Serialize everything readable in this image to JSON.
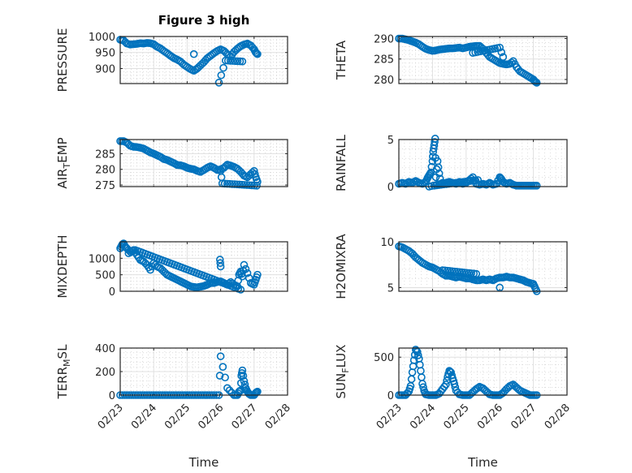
{
  "chart_data": {
    "type": "scatter",
    "figure_title": "Figure 3 high",
    "marker": "circle-open",
    "marker_color": "#0072BD",
    "grid": true,
    "minor_grid": true,
    "x_tick_labels": [
      "02/23",
      "02/24",
      "02/25",
      "02/26",
      "02/27",
      "02/28"
    ],
    "x_range_days": [
      0,
      5
    ],
    "xlabel": "Time",
    "subplots": [
      {
        "id": "pressure",
        "ylabel_main": "PRESSURE",
        "ylabel_sub": "",
        "ylabel_rest": "",
        "ylim": [
          853,
          1000
        ],
        "yticks": [
          900,
          950,
          1000
        ],
        "title": "Figure 3 high",
        "show_xtick_labels": false,
        "x": [
          0.0,
          0.1,
          0.2,
          0.3,
          0.4,
          0.5,
          0.6,
          0.7,
          0.8,
          0.9,
          1.0,
          1.1,
          1.2,
          1.3,
          1.4,
          1.5,
          1.6,
          1.7,
          1.8,
          1.9,
          2.0,
          2.1,
          2.2,
          2.3,
          2.4,
          2.5,
          2.6,
          2.7,
          2.8,
          2.9,
          3.0,
          3.1,
          3.2,
          3.3,
          3.4,
          3.5,
          3.6,
          3.7,
          3.8,
          3.9,
          4.0,
          4.05,
          4.1,
          2.95,
          3.15,
          3.65,
          2.2
        ],
        "y": [
          990,
          988,
          978,
          975,
          976,
          977,
          979,
          978,
          980,
          979,
          976,
          968,
          963,
          955,
          948,
          940,
          933,
          928,
          922,
          912,
          905,
          898,
          893,
          900,
          910,
          920,
          932,
          940,
          948,
          955,
          960,
          955,
          945,
          938,
          952,
          962,
          970,
          975,
          978,
          972,
          960,
          950,
          945,
          856,
          925,
          922,
          945
        ]
      },
      {
        "id": "theta",
        "ylabel_main": "THETA",
        "ylabel_sub": "",
        "ylabel_rest": "",
        "ylim": [
          279,
          290.5
        ],
        "yticks": [
          280,
          285,
          290
        ],
        "show_xtick_labels": false,
        "x": [
          0.0,
          0.1,
          0.2,
          0.3,
          0.4,
          0.5,
          0.6,
          0.7,
          0.8,
          0.9,
          1.0,
          1.1,
          1.2,
          1.3,
          1.4,
          1.5,
          1.6,
          1.7,
          1.8,
          1.9,
          2.0,
          2.1,
          2.2,
          2.3,
          2.4,
          2.5,
          2.6,
          2.7,
          2.8,
          2.9,
          3.0,
          3.1,
          3.2,
          3.3,
          3.4,
          3.5,
          3.6,
          3.7,
          3.8,
          3.9,
          4.0,
          4.05,
          4.1,
          2.2,
          3.0,
          3.1
        ],
        "y": [
          290,
          290,
          289.8,
          289.6,
          289.3,
          289,
          288.6,
          288,
          287.5,
          287.2,
          287,
          287.1,
          287.3,
          287.4,
          287.5,
          287.6,
          287.6,
          287.7,
          287.8,
          287.6,
          287.8,
          288,
          288.1,
          288.2,
          288.2,
          287.5,
          286.5,
          285.5,
          285,
          284.5,
          284,
          283.8,
          283.7,
          283.8,
          284.5,
          283,
          282,
          281.5,
          281,
          280.5,
          280,
          279.5,
          279.2,
          286.5,
          287.8,
          285.5
        ]
      },
      {
        "id": "air_temp",
        "ylabel_main": "AIR",
        "ylabel_sub": "T",
        "ylabel_rest": "EMP",
        "ylim": [
          274.5,
          289.5
        ],
        "yticks": [
          275,
          280,
          285
        ],
        "show_xtick_labels": false,
        "x": [
          0.0,
          0.1,
          0.2,
          0.3,
          0.4,
          0.5,
          0.6,
          0.7,
          0.8,
          0.9,
          1.0,
          1.1,
          1.2,
          1.3,
          1.4,
          1.5,
          1.6,
          1.7,
          1.8,
          1.9,
          2.0,
          2.1,
          2.2,
          2.3,
          2.4,
          2.5,
          2.6,
          2.7,
          2.8,
          2.9,
          3.0,
          3.1,
          3.2,
          3.3,
          3.4,
          3.5,
          3.6,
          3.7,
          3.8,
          3.9,
          4.0,
          4.05,
          4.1,
          3.0,
          3.05,
          4.08
        ],
        "y": [
          289,
          289,
          288.5,
          287.5,
          287.2,
          287.1,
          286.9,
          286.6,
          286,
          285.4,
          285,
          284.5,
          284,
          283.3,
          283,
          282.5,
          282,
          281.4,
          281.3,
          281,
          280.5,
          280.2,
          280,
          279.5,
          279.2,
          279.8,
          280.5,
          281,
          280.5,
          279.8,
          280,
          280.5,
          281.5,
          281.2,
          280.8,
          280.2,
          279.2,
          278,
          277.5,
          278.5,
          279.5,
          277.5,
          276,
          279.5,
          275.5,
          274.8
        ]
      },
      {
        "id": "rainfall",
        "ylabel_main": "RAINFALL",
        "ylabel_sub": "",
        "ylabel_rest": "",
        "ylim": [
          0,
          5
        ],
        "yticks": [
          0,
          5
        ],
        "show_xtick_labels": false,
        "x": [
          0.0,
          0.1,
          0.2,
          0.3,
          0.4,
          0.5,
          0.6,
          0.7,
          0.8,
          0.85,
          0.9,
          0.95,
          1.0,
          1.02,
          1.05,
          1.08,
          1.1,
          1.15,
          1.2,
          1.25,
          1.3,
          1.4,
          1.5,
          1.6,
          1.7,
          1.8,
          1.9,
          2.0,
          2.1,
          2.2,
          2.3,
          2.4,
          2.5,
          2.6,
          2.7,
          2.8,
          2.9,
          3.0,
          3.05,
          3.1,
          3.2,
          3.3,
          3.4,
          3.5,
          3.6,
          3.7,
          3.8,
          3.9,
          4.0,
          4.1,
          0.9,
          1.5,
          1.05,
          2.35
        ],
        "y": [
          0.3,
          0.4,
          0.3,
          0.5,
          0.4,
          0.6,
          0.4,
          0.3,
          0.5,
          0.9,
          1.2,
          1.5,
          2.7,
          3.7,
          4.4,
          5.1,
          1.0,
          2.7,
          1.4,
          0.3,
          0.4,
          0.3,
          0.5,
          0.4,
          0.3,
          0.5,
          0.3,
          0.4,
          0.7,
          1.0,
          0.3,
          0.2,
          0.3,
          0.2,
          0.4,
          0.2,
          0.3,
          1.0,
          0.8,
          0.5,
          0.3,
          0.4,
          0.2,
          0.1,
          0.1,
          0.1,
          0.1,
          0.1,
          0.1,
          0.1,
          0.0,
          0.5,
          0.1,
          0.7
        ]
      },
      {
        "id": "mixdepth",
        "ylabel_main": "MIXDEPTH",
        "ylabel_sub": "",
        "ylabel_rest": "",
        "ylim": [
          0,
          1500
        ],
        "yticks": [
          0,
          500,
          1000
        ],
        "show_xtick_labels": false,
        "x": [
          0.0,
          0.05,
          0.1,
          0.15,
          0.2,
          0.3,
          0.4,
          0.5,
          0.6,
          0.7,
          0.8,
          0.9,
          1.0,
          1.1,
          1.2,
          1.3,
          1.4,
          1.5,
          1.6,
          1.7,
          1.8,
          1.9,
          2.0,
          2.1,
          2.2,
          2.3,
          2.4,
          2.5,
          2.6,
          2.7,
          2.8,
          2.9,
          3.0,
          3.1,
          3.2,
          3.3,
          3.4,
          3.5,
          3.55,
          3.6,
          3.65,
          3.7,
          3.8,
          3.9,
          4.0,
          4.05,
          4.1,
          2.98,
          3.0,
          0.25,
          0.45,
          3.6
        ],
        "y": [
          1300,
          1400,
          1450,
          1350,
          1300,
          1200,
          1250,
          1100,
          950,
          900,
          800,
          650,
          850,
          750,
          700,
          600,
          500,
          450,
          400,
          350,
          300,
          250,
          200,
          150,
          130,
          120,
          140,
          160,
          200,
          250,
          250,
          280,
          300,
          250,
          200,
          280,
          200,
          150,
          500,
          600,
          450,
          800,
          550,
          250,
          200,
          350,
          500,
          960,
          750,
          1150,
          1250,
          50
        ]
      },
      {
        "id": "h2omixra",
        "ylabel_main": "H2OMIXRA",
        "ylabel_sub": "",
        "ylabel_rest": "",
        "ylim": [
          4.6,
          10
        ],
        "yticks": [
          5,
          10
        ],
        "show_xtick_labels": false,
        "x": [
          0.0,
          0.1,
          0.2,
          0.3,
          0.4,
          0.5,
          0.6,
          0.7,
          0.8,
          0.9,
          1.0,
          1.1,
          1.2,
          1.3,
          1.4,
          1.5,
          1.6,
          1.7,
          1.8,
          1.9,
          2.0,
          2.1,
          2.2,
          2.3,
          2.4,
          2.5,
          2.6,
          2.7,
          2.8,
          2.9,
          3.0,
          3.1,
          3.2,
          3.3,
          3.4,
          3.5,
          3.6,
          3.7,
          3.8,
          3.9,
          4.0,
          4.05,
          4.1,
          3.0,
          1.3,
          2.3
        ],
        "y": [
          9.5,
          9.4,
          9.2,
          9.0,
          8.7,
          8.3,
          8.0,
          7.7,
          7.5,
          7.3,
          7.2,
          7.0,
          6.8,
          6.5,
          6.3,
          6.3,
          6.2,
          6.1,
          6.2,
          6.1,
          6.0,
          6.0,
          5.9,
          5.8,
          5.8,
          5.9,
          5.8,
          5.9,
          5.8,
          6.0,
          6.1,
          6.1,
          6.2,
          6.1,
          6.1,
          6.0,
          5.9,
          5.8,
          5.6,
          5.5,
          5.4,
          5.0,
          4.6,
          5.0,
          6.9,
          6.5
        ]
      },
      {
        "id": "terr_msl",
        "ylabel_main": "TERR",
        "ylabel_sub": "M",
        "ylabel_rest": "SL",
        "ylim": [
          0,
          400
        ],
        "yticks": [
          0,
          200,
          400
        ],
        "show_xtick_labels": true,
        "x": [
          0.0,
          0.2,
          0.4,
          0.6,
          0.8,
          1.0,
          1.2,
          1.4,
          1.6,
          1.8,
          2.0,
          2.2,
          2.4,
          2.6,
          2.8,
          2.95,
          3.0,
          3.2,
          3.4,
          3.5,
          3.55,
          3.6,
          3.62,
          3.65,
          3.7,
          3.75,
          3.8,
          3.85,
          3.9,
          4.0,
          4.05,
          4.1
        ],
        "y": [
          0,
          0,
          0,
          0,
          0,
          0,
          0,
          0,
          0,
          0,
          0,
          0,
          0,
          0,
          0,
          0,
          330,
          60,
          0,
          0,
          30,
          40,
          165,
          210,
          120,
          60,
          30,
          10,
          0,
          0,
          20,
          30
        ]
      },
      {
        "id": "sun_flux",
        "ylabel_main": "SUN",
        "ylabel_sub": "F",
        "ylabel_rest": "LUX",
        "ylim": [
          0,
          620
        ],
        "yticks": [
          0,
          500
        ],
        "show_xtick_labels": true,
        "x": [
          0.0,
          0.1,
          0.2,
          0.3,
          0.35,
          0.4,
          0.45,
          0.5,
          0.55,
          0.6,
          0.65,
          0.7,
          0.75,
          0.8,
          0.9,
          1.0,
          1.1,
          1.2,
          1.3,
          1.4,
          1.45,
          1.5,
          1.55,
          1.6,
          1.65,
          1.7,
          1.8,
          1.9,
          2.0,
          2.1,
          2.2,
          2.3,
          2.4,
          2.5,
          2.6,
          2.7,
          2.8,
          2.9,
          3.0,
          3.1,
          3.2,
          3.3,
          3.4,
          3.5,
          3.6,
          3.7,
          3.8,
          3.9,
          4.0,
          4.1
        ],
        "y": [
          0,
          0,
          0,
          50,
          120,
          300,
          460,
          600,
          570,
          480,
          320,
          150,
          60,
          10,
          0,
          0,
          0,
          20,
          80,
          140,
          240,
          320,
          300,
          220,
          150,
          60,
          10,
          0,
          0,
          0,
          40,
          80,
          110,
          90,
          50,
          10,
          0,
          0,
          0,
          30,
          80,
          120,
          140,
          100,
          60,
          40,
          20,
          0,
          0,
          0
        ]
      }
    ]
  }
}
